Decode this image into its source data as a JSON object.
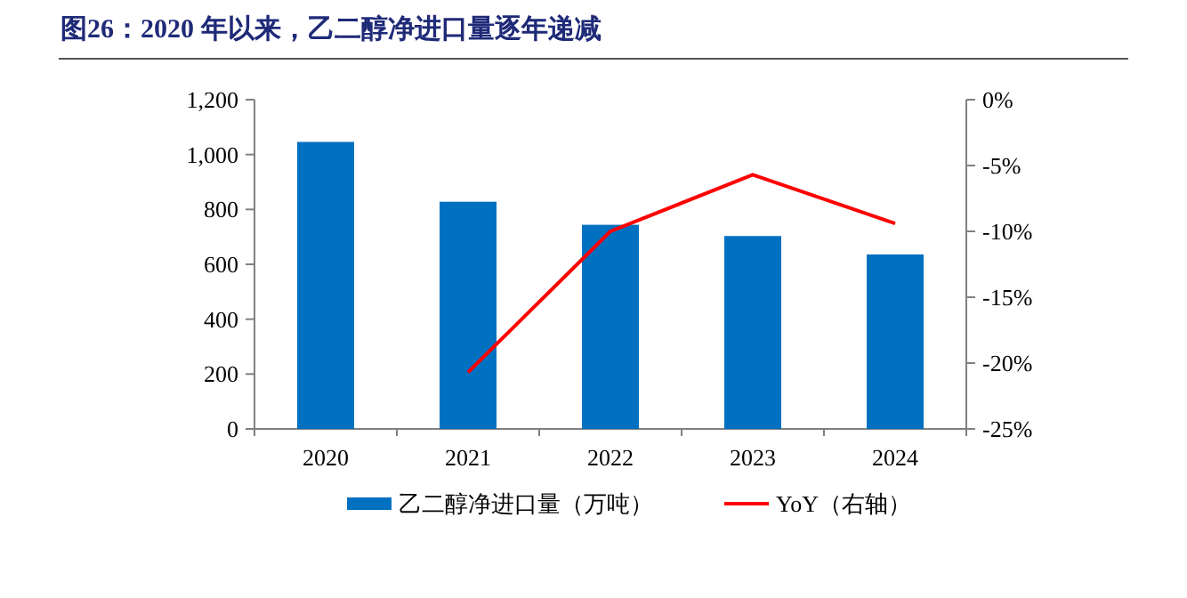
{
  "chart_data": {
    "type": "bar",
    "title": "图26：2020 年以来，乙二醇净进口量逐年递减",
    "categories": [
      "2020",
      "2021",
      "2022",
      "2023",
      "2024"
    ],
    "series": [
      {
        "name": "乙二醇净进口量（万吨）",
        "color": "#0070c0",
        "values": [
          1046,
          828,
          744,
          703,
          636
        ]
      },
      {
        "name": "YoY（右轴）",
        "type": "line",
        "axis": "y2",
        "color": "#ff0000",
        "marker": "none",
        "values": [
          null,
          -20.7,
          -10.0,
          -5.7,
          -9.4
        ]
      }
    ],
    "ylim": [
      0,
      1200
    ],
    "yticks": [
      0,
      200,
      400,
      600,
      800,
      {
        "value": 1000,
        "label": "1,000"
      },
      {
        "value": 1200,
        "label": "1,200"
      }
    ],
    "y2lim": [
      -25,
      0
    ],
    "y2ticks": [
      {
        "value": -25,
        "label": "-25%"
      },
      {
        "value": -20,
        "label": "-20%"
      },
      {
        "value": -15,
        "label": "-15%"
      },
      {
        "value": -10,
        "label": "-10%"
      },
      {
        "value": -5,
        "label": "-5%"
      },
      {
        "value": 0,
        "label": "0%"
      }
    ],
    "grid": false,
    "legend": "bottom"
  }
}
